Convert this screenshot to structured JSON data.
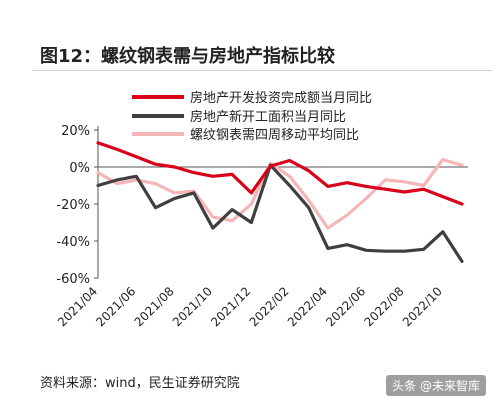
{
  "title": "图12：螺纹钢表需与房地产指标比较",
  "source": "资料来源：wind，民生证券研究院",
  "watermark": "头条 @未来智库",
  "chart_data": {
    "type": "line",
    "x": [
      "2021/04",
      "2021/05",
      "2021/06",
      "2021/07",
      "2021/08",
      "2021/09",
      "2021/10",
      "2021/11",
      "2021/12",
      "2022/01",
      "2022/02",
      "2022/03",
      "2022/04",
      "2022/05",
      "2022/06",
      "2022/07",
      "2022/08",
      "2022/09",
      "2022/10",
      "2022/11"
    ],
    "x_tick_labels": [
      "2021/04",
      "2021/06",
      "2021/08",
      "2021/10",
      "2021/12",
      "2022/02",
      "2022/04",
      "2022/06",
      "2022/08",
      "2022/10"
    ],
    "y_ticks": [
      20,
      0,
      -20,
      -40,
      -60
    ],
    "y_tick_labels": [
      "20%",
      "0%",
      "-20%",
      "-40%",
      "-60%"
    ],
    "ylim": [
      -60,
      20
    ],
    "legend_position": "top",
    "series": [
      {
        "name": "房地产开发投资完成额当月同比",
        "color": "#d9001b",
        "values": [
          13,
          9.5,
          5.5,
          1.5,
          0,
          -3,
          -5,
          -4,
          -14,
          0.5,
          3.5,
          -2,
          -10.5,
          -8.5,
          -10.5,
          -12,
          -13.5,
          -12,
          -16,
          -20
        ]
      },
      {
        "name": "房地产新开工面积当月同比",
        "color": "#3f3f3f",
        "values": [
          -10,
          -7,
          -5,
          -22,
          -17,
          -14,
          -33,
          -23,
          -30,
          1,
          -10,
          -22,
          -44,
          -42,
          -45,
          -45.5,
          -45.5,
          -44.5,
          -35,
          -51
        ]
      },
      {
        "name": "螺纹钢表需四周移动平均同比",
        "color": "#f4b6b6",
        "values": [
          -3,
          -9,
          -7,
          -9,
          -14,
          -13,
          -27,
          -29,
          -20,
          2,
          -5,
          -18,
          -33,
          -26,
          -17,
          -7,
          -8,
          -10,
          4,
          1
        ]
      }
    ]
  }
}
